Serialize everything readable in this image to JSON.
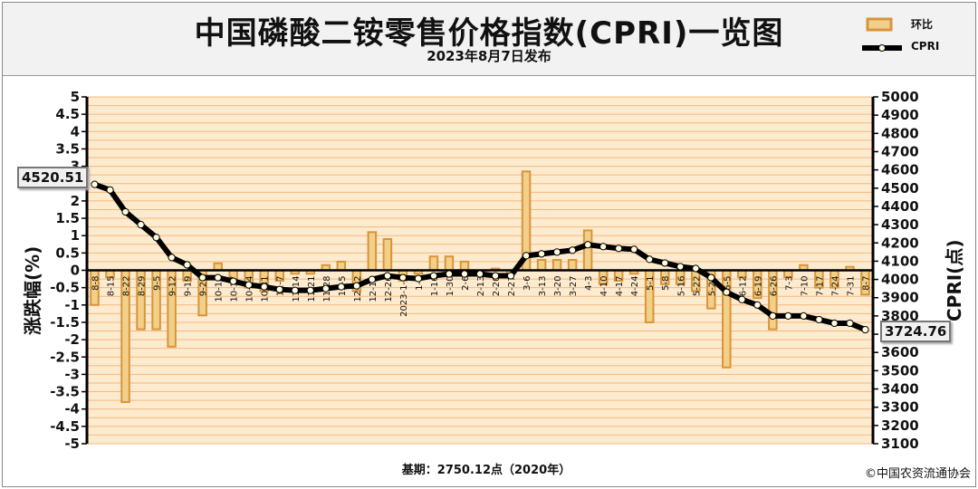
{
  "header": {
    "title": "中国磷酸二铵零售价格指数(CPRI)一览图",
    "subtitle": "2023年8月7日发布"
  },
  "legend": {
    "bar_label": "环比",
    "line_label": "CPRI"
  },
  "footer": {
    "base": "基期：2750.12点（2020年）",
    "copyright": "©中国农资流通协会"
  },
  "callouts": {
    "start_value": "4520.51",
    "end_value": "3724.76"
  },
  "colors": {
    "plot_bg": "#fdebd0",
    "grid": "#f5b77a",
    "bar": "#d8943a",
    "bar_highlight": "#f2d089",
    "line": "#000000",
    "marker_fill": "#fffde0"
  },
  "chart_data": {
    "type": "bar",
    "title": "中国磷酸二铵零售价格指数(CPRI)一览图",
    "ylabel_left": "涨跌幅(%)",
    "ylabel_right": "CPRI(点)",
    "ylim_left": [
      -5,
      5
    ],
    "ylim_right": [
      3100,
      5000
    ],
    "yticks_left": [
      "5",
      "4.5",
      "4",
      "3.5",
      "3",
      "2.5",
      "2",
      "1.5",
      "1",
      "0.5",
      "0",
      "-0.5",
      "-1",
      "-1.5",
      "-2",
      "-2.5",
      "-3",
      "-3.5",
      "-4",
      "-4.5",
      "-5"
    ],
    "yticks_right": [
      "5000",
      "4900",
      "4800",
      "4700",
      "4600",
      "4500",
      "4400",
      "4300",
      "4200",
      "4100",
      "4000",
      "3900",
      "3800",
      "3700",
      "3600",
      "3500",
      "3400",
      "3300",
      "3200",
      "3100"
    ],
    "grid": true,
    "legend_position": "top-right",
    "categories": [
      "8-8",
      "8-15",
      "8-22",
      "8-29",
      "9-5",
      "9-12",
      "9-19",
      "9-26",
      "10-10",
      "10-17",
      "10-24",
      "10-31",
      "11-7",
      "11-14",
      "11-21",
      "11-28",
      "12-5",
      "12-12",
      "12-19",
      "12-26",
      "2023-1-2",
      "1-9",
      "1-16",
      "1-30",
      "2-6",
      "2-13",
      "2-20",
      "2-27",
      "3-6",
      "3-13",
      "3-20",
      "3-27",
      "4-3",
      "4-10",
      "4-17",
      "4-24",
      "5-1",
      "5-8",
      "5-16",
      "5-22",
      "5-29",
      "6-5",
      "6-12",
      "6-19",
      "6-26",
      "7-3",
      "7-10",
      "7-17",
      "7-24",
      "7-31",
      "8-7"
    ],
    "series": [
      {
        "name": "环比",
        "type": "bar",
        "axis": "left",
        "values": [
          -1.0,
          -0.2,
          -3.8,
          -1.7,
          -1.7,
          -2.2,
          -0.3,
          -1.3,
          0.2,
          -0.3,
          -0.5,
          -0.6,
          -0.3,
          -0.1,
          -0.1,
          0.15,
          0.25,
          -0.6,
          1.1,
          0.9,
          -0.3,
          -0.1,
          0.4,
          0.4,
          0.25,
          -0.1,
          0.05,
          -0.1,
          2.85,
          0.3,
          0.3,
          0.3,
          1.15,
          -0.4,
          -0.3,
          -0.1,
          -1.5,
          -0.4,
          -0.4,
          -0.6,
          -1.1,
          -2.8,
          -0.2,
          -0.8,
          -1.7,
          -0.2,
          0.15,
          -0.5,
          -0.5,
          0.1,
          -0.7
        ]
      },
      {
        "name": "CPRI",
        "type": "line",
        "axis": "right",
        "values": [
          4520.51,
          4490,
          4370,
          4300,
          4230,
          4120,
          4080,
          4010,
          4010,
          3990,
          3970,
          3960,
          3945,
          3940,
          3940,
          3950,
          3960,
          3965,
          4000,
          4020,
          4010,
          4005,
          4020,
          4030,
          4030,
          4030,
          4020,
          4020,
          4130,
          4140,
          4150,
          4160,
          4190,
          4180,
          4170,
          4165,
          4110,
          4090,
          4070,
          4060,
          4010,
          3930,
          3890,
          3860,
          3800,
          3800,
          3800,
          3780,
          3760,
          3760,
          3724.76
        ]
      }
    ]
  }
}
